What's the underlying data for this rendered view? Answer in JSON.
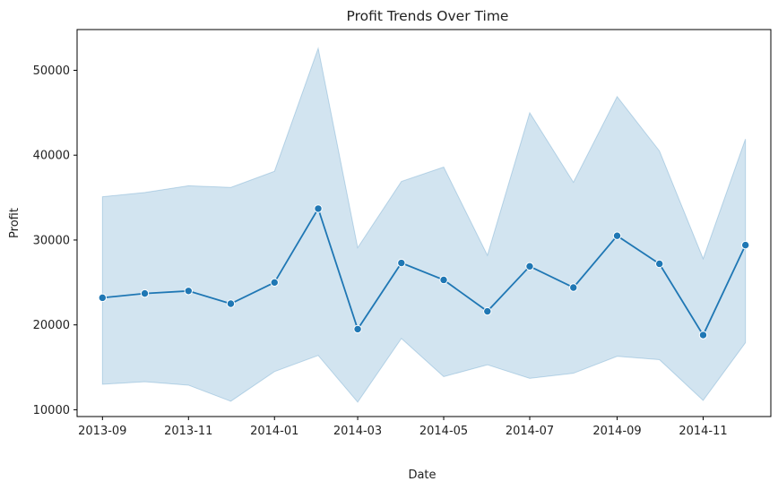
{
  "chart_data": {
    "type": "line",
    "title": "Profit Trends Over Time",
    "xlabel": "Date",
    "ylabel": "Profit",
    "x_ticks": [
      "2013-09",
      "2013-11",
      "2014-01",
      "2014-03",
      "2014-05",
      "2014-07",
      "2014-09",
      "2014-11"
    ],
    "y_ticks": [
      10000,
      20000,
      30000,
      40000,
      50000
    ],
    "y_tick_labels": [
      "10000",
      "20000",
      "30000",
      "40000",
      "50000"
    ],
    "ylim": [
      9200,
      54800
    ],
    "xlim": [
      "2013-08-14",
      "2014-12-19"
    ],
    "grid": false,
    "colors": {
      "line": "#1f77b4",
      "band": "#1f77b4",
      "band_opacity": 0.2,
      "axes": "#000000"
    },
    "series": [
      {
        "marker": "circle",
        "x": [
          "2013-09-01",
          "2013-10-01",
          "2013-11-01",
          "2013-12-01",
          "2014-01-01",
          "2014-02-01",
          "2014-03-01",
          "2014-04-01",
          "2014-05-01",
          "2014-06-01",
          "2014-07-01",
          "2014-08-01",
          "2014-09-01",
          "2014-10-01",
          "2014-11-01",
          "2014-12-01"
        ],
        "values": [
          23200,
          23700,
          24000,
          22500,
          25000,
          33700,
          19500,
          27300,
          25300,
          21600,
          26900,
          24400,
          30500,
          27200,
          18800,
          29400
        ],
        "ci_upper": [
          35100,
          35600,
          36400,
          36200,
          38100,
          52600,
          29100,
          36900,
          38600,
          28200,
          45000,
          36800,
          46900,
          40500,
          27800,
          41900
        ],
        "ci_lower": [
          13000,
          13300,
          12900,
          11000,
          14500,
          16400,
          10900,
          18400,
          13900,
          15300,
          13700,
          14300,
          16300,
          15900,
          11100,
          17900
        ]
      }
    ]
  }
}
